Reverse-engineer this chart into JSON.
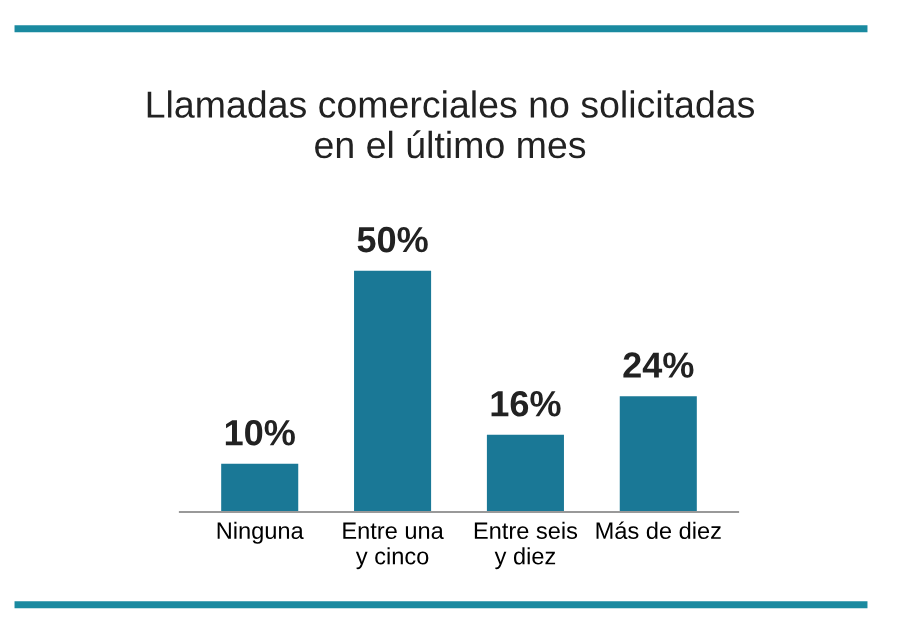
{
  "chart_data": {
    "type": "bar",
    "title": "Llamadas comerciales no solicitadas\nen el último mes",
    "categories": [
      "Ninguna",
      "Entre una\ny cinco",
      "Entre seis\ny diez",
      "Más de diez"
    ],
    "values": [
      10,
      50,
      16,
      24
    ],
    "value_labels": [
      "10%",
      "50%",
      "16%",
      "24%"
    ],
    "color": "#1a7896",
    "grid": false,
    "legend": false
  }
}
